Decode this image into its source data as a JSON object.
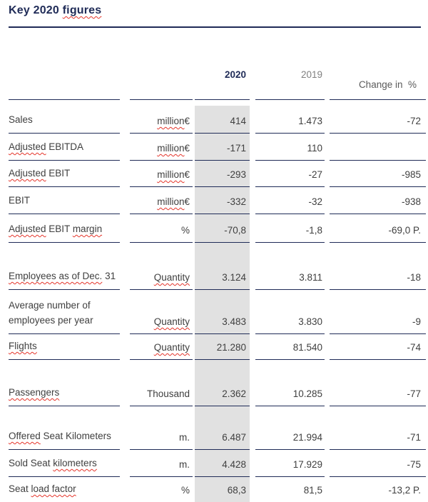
{
  "title": {
    "segments": [
      {
        "t": "Key 2020 ",
        "sp": false
      },
      {
        "t": "figures",
        "sp": true
      }
    ]
  },
  "header": {
    "y2020": "2020",
    "y2019": "2019",
    "change": "Change in  %"
  },
  "colors": {
    "navy": "#1f2b57",
    "body_text": "#3f3f3f",
    "header_2019_gray": "#808080",
    "header_change_gray": "#5a5a5a",
    "highlight_column": "#e1e1e1",
    "spellcheck_red": "#e5352b"
  },
  "rows": [
    {
      "label": [
        {
          "t": "Sales",
          "sp": false
        }
      ],
      "unit": [
        {
          "t": "million",
          "sp": true
        },
        {
          "t": " €",
          "sp": false
        }
      ],
      "v2020": "414",
      "v2019": "1.473",
      "change": "-72"
    },
    {
      "label": [
        {
          "t": "Adjusted",
          "sp": true
        },
        {
          "t": " EBITDA",
          "sp": false
        }
      ],
      "unit": [
        {
          "t": "million",
          "sp": true
        },
        {
          "t": " €",
          "sp": false
        }
      ],
      "v2020": "-171",
      "v2019": "110",
      "change": ""
    },
    {
      "label": [
        {
          "t": "Adjusted",
          "sp": true
        },
        {
          "t": " EBIT",
          "sp": false
        }
      ],
      "unit": [
        {
          "t": "million",
          "sp": true
        },
        {
          "t": " €",
          "sp": false
        }
      ],
      "v2020": "-293",
      "v2019": "-27",
      "change": "-985"
    },
    {
      "label": [
        {
          "t": "EBIT",
          "sp": false
        }
      ],
      "unit": [
        {
          "t": "million",
          "sp": true
        },
        {
          "t": " €",
          "sp": false
        }
      ],
      "v2020": "-332",
      "v2019": "-32",
      "change": "-938"
    },
    {
      "label": [
        {
          "t": "Adjusted",
          "sp": true
        },
        {
          "t": " EBIT ",
          "sp": false
        },
        {
          "t": "margin",
          "sp": true
        }
      ],
      "unit": [
        {
          "t": "%",
          "sp": false
        }
      ],
      "v2020": "-70,8",
      "v2019": "-1,8",
      "change": "-69,0 P."
    },
    {
      "label": [
        {
          "t": "Employees as of Dec.",
          "sp": true
        },
        {
          "t": " 31",
          "sp": false
        }
      ],
      "unit": [
        {
          "t": "Quantity",
          "sp": true
        }
      ],
      "v2020": "3.124",
      "v2019": "3.811",
      "change": "-18"
    },
    {
      "label": [
        {
          "t": "Average number of",
          "sp": false
        }
      ],
      "label2": [
        {
          "t": "employees per year",
          "sp": false
        }
      ],
      "unit": [
        {
          "t": "Quantity",
          "sp": true
        }
      ],
      "v2020": "3.483",
      "v2019": "3.830",
      "change": "-9"
    },
    {
      "label": [
        {
          "t": "Flights",
          "sp": true
        }
      ],
      "unit": [
        {
          "t": "Quantity",
          "sp": true
        }
      ],
      "v2020": "21.280",
      "v2019": "81.540",
      "change": "-74"
    },
    {
      "label": [
        {
          "t": "Passengers",
          "sp": true
        }
      ],
      "unit": [
        {
          "t": "Thousand",
          "sp": false
        }
      ],
      "v2020": "2.362",
      "v2019": "10.285",
      "change": "-77"
    },
    {
      "label": [
        {
          "t": "Offered",
          "sp": true
        },
        {
          "t": " Seat Kilometers",
          "sp": false
        }
      ],
      "unit": [
        {
          "t": "m.",
          "sp": false
        }
      ],
      "v2020": "6.487",
      "v2019": "21.994",
      "change": "-71"
    },
    {
      "label": [
        {
          "t": "Sold Seat ",
          "sp": false
        },
        {
          "t": "kilometers",
          "sp": true
        }
      ],
      "unit": [
        {
          "t": "m.",
          "sp": false
        }
      ],
      "v2020": "4.428",
      "v2019": "17.929",
      "change": "-75"
    },
    {
      "label": [
        {
          "t": "Seat ",
          "sp": false
        },
        {
          "t": "load factor",
          "sp": true
        }
      ],
      "unit": [
        {
          "t": "%",
          "sp": false
        }
      ],
      "v2020": "68,3",
      "v2019": "81,5",
      "change": "-13,2 P."
    }
  ]
}
